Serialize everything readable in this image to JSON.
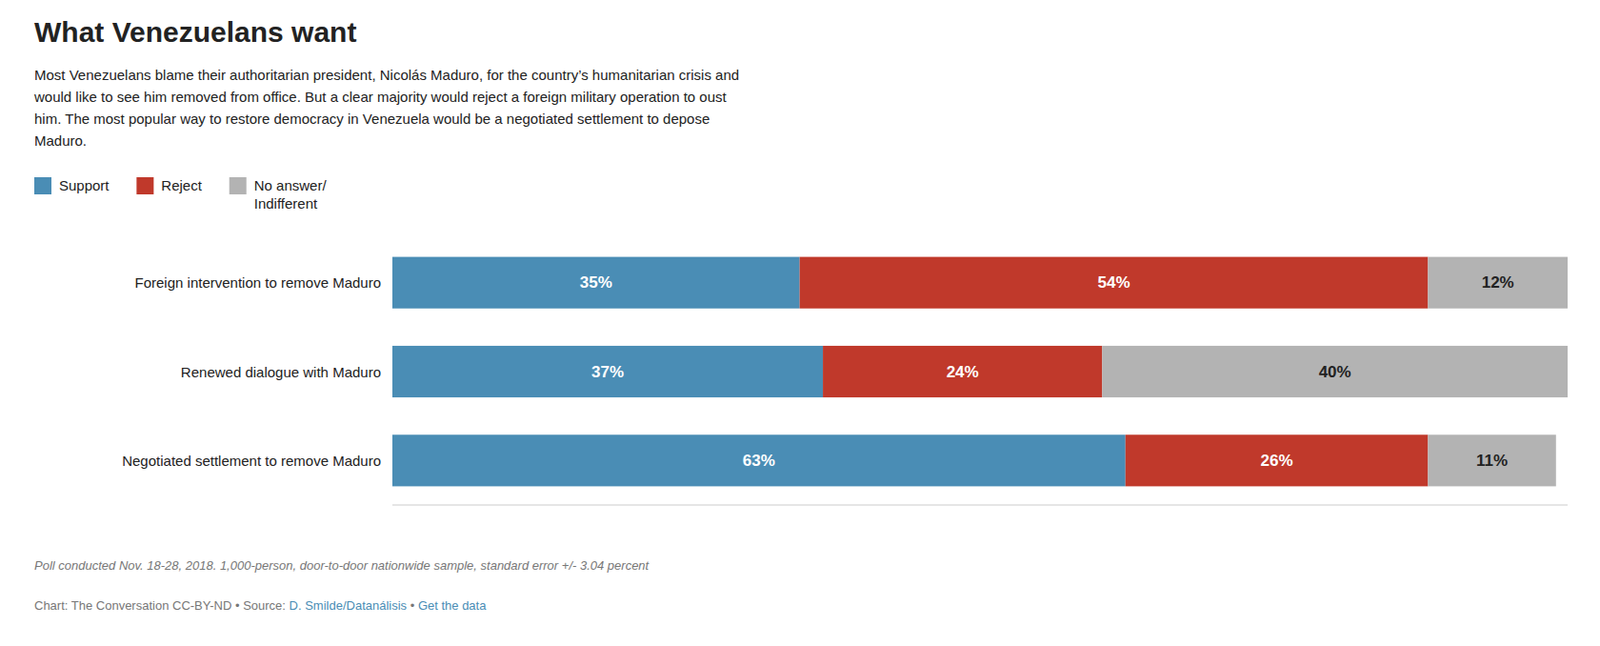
{
  "chart_data": {
    "type": "bar",
    "orientation": "horizontal",
    "stacked": true,
    "data_labels": true,
    "tick_labels": "y",
    "title": "What Venezuelans want",
    "subtitle": "Most Venezuelans blame their authoritarian president, Nicolás Maduro, for the country’s humanitarian crisis and\nwould like to see him removed from office. But a clear majority would reject a foreign military operation to oust\nhim. The most popular way to restore democracy in Venezuela would be a negotiated settlement to depose\nMaduro.",
    "categories": [
      "Foreign intervention to remove Maduro",
      "Renewed dialogue with Maduro",
      "Negotiated settlement to remove Maduro"
    ],
    "series": [
      {
        "name": "Support",
        "color": "#4a8db5",
        "values": [
          35,
          37,
          63
        ],
        "value_labels": [
          "35%",
          "37%",
          "63%"
        ]
      },
      {
        "name": "Reject",
        "color": "#c0392b",
        "values": [
          54,
          24,
          26
        ],
        "value_labels": [
          "54%",
          "24%",
          "26%"
        ]
      },
      {
        "name": "No answer/\nIndifferent",
        "color": "#b3b3b3",
        "values": [
          12,
          40,
          11
        ],
        "value_labels": [
          "12%",
          "40%",
          "11%"
        ]
      }
    ],
    "xlim": [
      0,
      101
    ],
    "footnote": "Poll conducted Nov. 18-28, 2018. 1,000-person, door-to-door nationwide sample, standard error +/- 3.04 percent",
    "source": [
      "Chart: The Conversation CC-BY-ND • Source: ",
      "D. Smilde/Datanálisis",
      " • ",
      "Get the data"
    ]
  }
}
